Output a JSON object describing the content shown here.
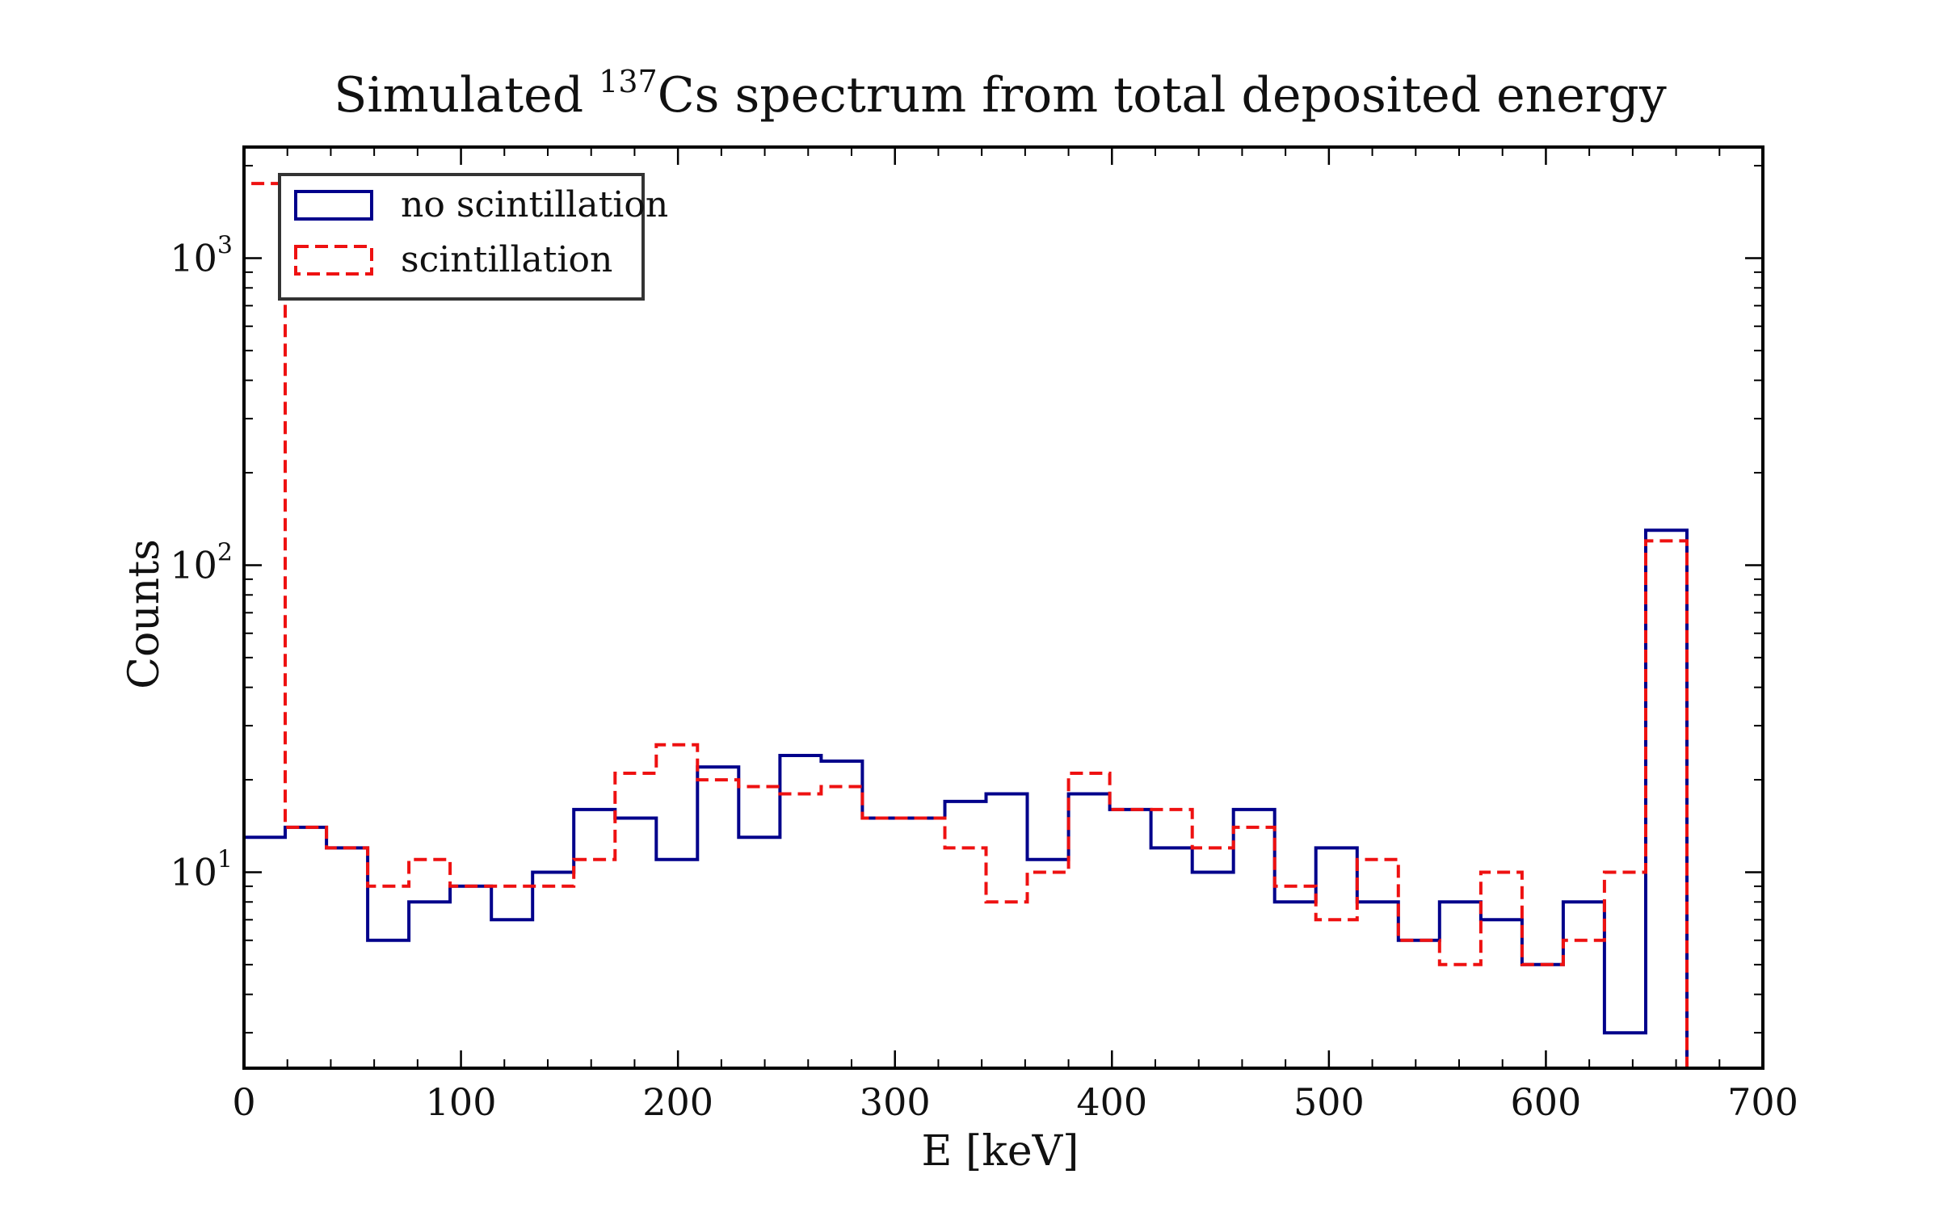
{
  "chart_data": {
    "type": "histogram",
    "title": {
      "prefix": "Simulated ",
      "superscript": "137",
      "suffix": "Cs spectrum from total deposited energy"
    },
    "xlabel": "E [keV]",
    "ylabel": "Counts",
    "xlim": [
      0,
      700
    ],
    "ylim": [
      2.3,
      2300
    ],
    "yscale": "log",
    "xticks": [
      0,
      100,
      200,
      300,
      400,
      500,
      600,
      700
    ],
    "yticks": [
      {
        "base": "10",
        "exponent": "1",
        "value": 10
      },
      {
        "base": "10",
        "exponent": "2",
        "value": 100
      },
      {
        "base": "10",
        "exponent": "3",
        "value": 1000
      }
    ],
    "grid": false,
    "legend_position": "top-left",
    "bin_edges": [
      0,
      19,
      38,
      57,
      76,
      95,
      114,
      133,
      152,
      171,
      190,
      209,
      228,
      247,
      266,
      285,
      304,
      323,
      342,
      361,
      380,
      399,
      418,
      437,
      456,
      475,
      494,
      513,
      532,
      551,
      570,
      589,
      608,
      627,
      646,
      665
    ],
    "series": [
      {
        "name": "no scintillation",
        "color": "#00008b",
        "linestyle": "solid",
        "counts": [
          13,
          14,
          12,
          6,
          8,
          9,
          7,
          10,
          16,
          15,
          11,
          22,
          13,
          24,
          23,
          15,
          15,
          17,
          18,
          11,
          18,
          16,
          12,
          10,
          16,
          8,
          12,
          8,
          6,
          8,
          7,
          5,
          8,
          3,
          130
        ]
      },
      {
        "name": "scintillation",
        "color": "#ee1111",
        "linestyle": "dashed",
        "counts": [
          1750,
          14,
          12,
          9,
          11,
          9,
          9,
          9,
          11,
          21,
          26,
          20,
          19,
          18,
          19,
          15,
          15,
          12,
          8,
          10,
          21,
          16,
          16,
          12,
          14,
          9,
          7,
          11,
          6,
          5,
          10,
          5,
          6,
          10,
          120
        ]
      }
    ]
  }
}
